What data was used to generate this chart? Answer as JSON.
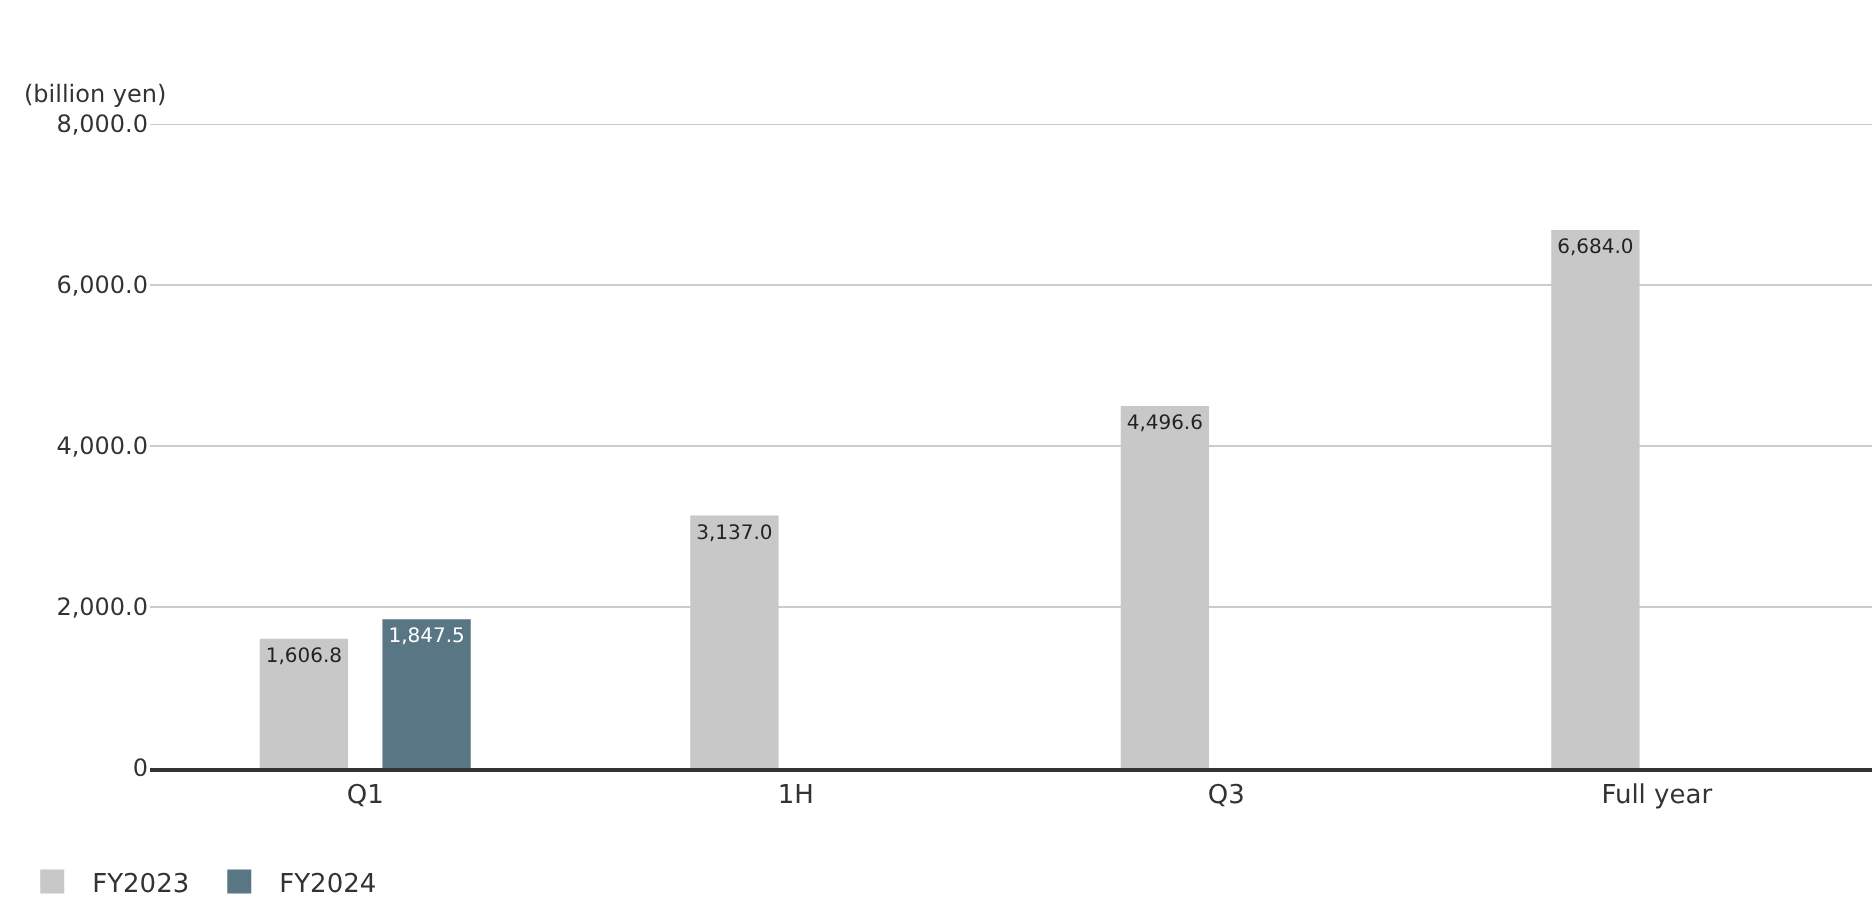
{
  "chart_data": {
    "type": "bar",
    "ylabel": "(billion yen)",
    "categories": [
      "Q1",
      "1H",
      "Q3",
      "Full year"
    ],
    "series": [
      {
        "name": "FY2023",
        "color": "#c8c8c8",
        "values": [
          1606.8,
          3137.0,
          4496.6,
          6684.0
        ],
        "value_labels": [
          "1,606.8",
          "3,137.0",
          "4,496.6",
          "6,684.0"
        ]
      },
      {
        "name": "FY2024",
        "color": "#587684",
        "values": [
          1847.5,
          null,
          null,
          null
        ],
        "value_labels": [
          "1,847.5",
          null,
          null,
          null
        ]
      }
    ],
    "ylim": [
      0,
      8000
    ],
    "yticks": [
      {
        "value": 0,
        "label": "0"
      },
      {
        "value": 2000,
        "label": "2,000.0"
      },
      {
        "value": 4000,
        "label": "4,000.0"
      },
      {
        "value": 6000,
        "label": "6,000.0"
      },
      {
        "value": 8000,
        "label": "8,000.0"
      }
    ],
    "grid": "y",
    "legend": "bottom left"
  }
}
